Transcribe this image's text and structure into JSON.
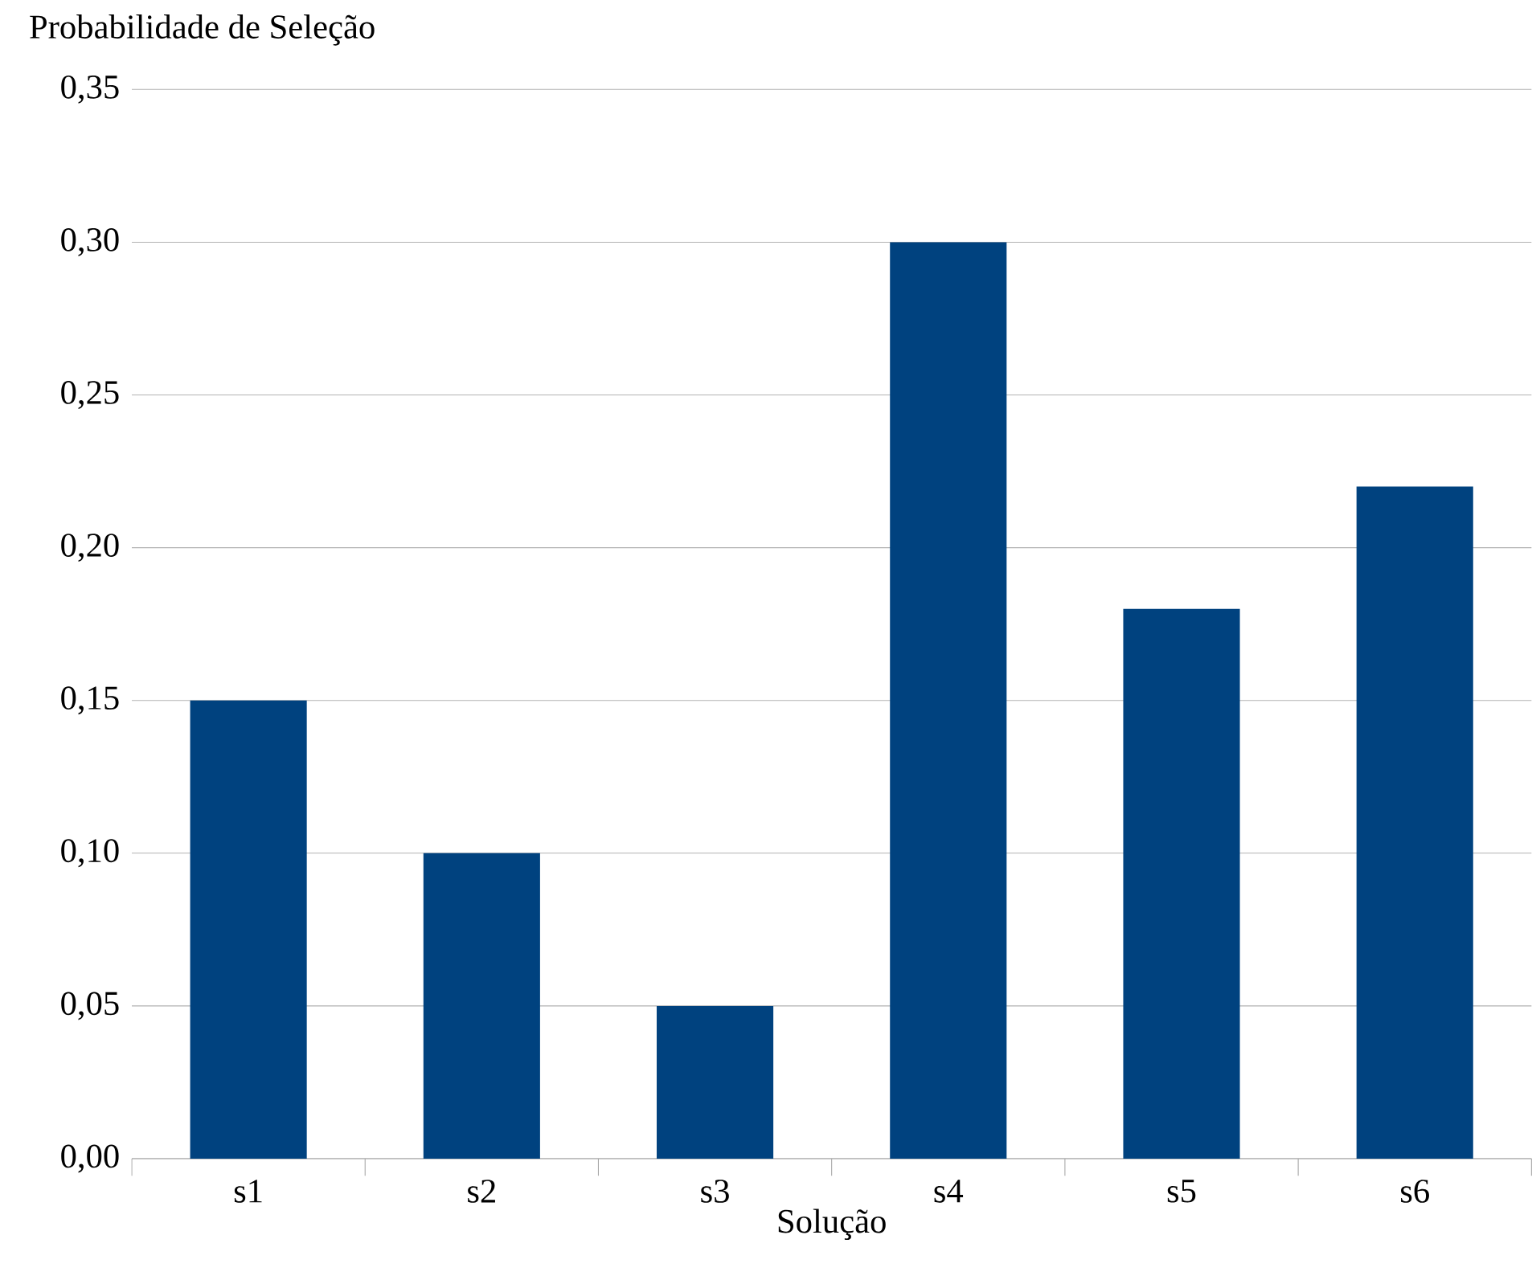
{
  "chart_data": {
    "type": "bar",
    "xlabel": "Solução",
    "ylabel": "Probabilidade de Seleção",
    "categories": [
      "s1",
      "s2",
      "s3",
      "s4",
      "s5",
      "s6"
    ],
    "values": [
      0.15,
      0.1,
      0.05,
      0.3,
      0.18,
      0.22
    ],
    "color": "#00427f",
    "ylim": [
      0,
      0.35
    ],
    "yticks": [
      {
        "value": 0,
        "label": "0,00"
      },
      {
        "value": 0.05,
        "label": "0,05"
      },
      {
        "value": 0.1,
        "label": "0,10"
      },
      {
        "value": 0.15,
        "label": "0,15"
      },
      {
        "value": 0.2,
        "label": "0,20"
      },
      {
        "value": 0.25,
        "label": "0,25"
      },
      {
        "value": 0.3,
        "label": "0,30"
      },
      {
        "value": 0.35,
        "label": "0,35"
      }
    ],
    "grid": "y"
  }
}
